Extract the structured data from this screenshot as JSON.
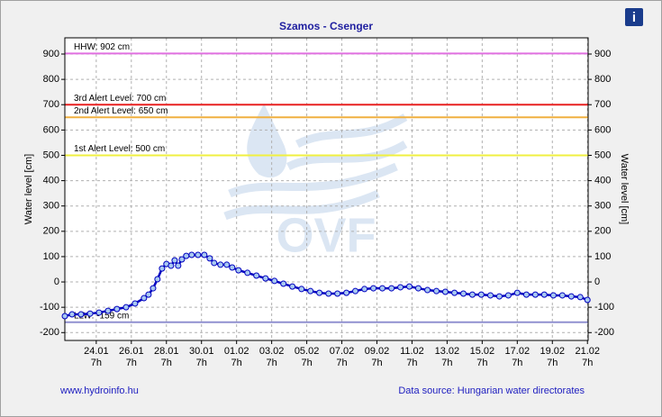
{
  "chart_data": {
    "type": "line",
    "title": "Szamos - Csenger",
    "ylabel": "Water level [cm]",
    "y2label": "Water level [cm]",
    "watermark": "OVF",
    "info_icon": "i",
    "footer_left": "www.hydroinfo.hu",
    "footer_right": "Data source: Hungarian water directorates",
    "color": "#0000c0",
    "marker_fill": "#a8c8f0",
    "grid": true,
    "xlim": [
      22.5,
      52.33
    ],
    "ylim": [
      -231,
      964
    ],
    "y2lim": [
      -231,
      964
    ],
    "yticks": [
      -200,
      -100,
      0,
      100,
      200,
      300,
      400,
      500,
      600,
      700,
      800,
      900
    ],
    "y2ticks": [
      -200,
      -100,
      0,
      100,
      200,
      300,
      400,
      500,
      600,
      700,
      800,
      900
    ],
    "xticks": [
      {
        "value": 24.29,
        "label": "24.01",
        "hour": "7h"
      },
      {
        "value": 26.29,
        "label": "26.01",
        "hour": "7h"
      },
      {
        "value": 28.29,
        "label": "28.01",
        "hour": "7h"
      },
      {
        "value": 30.29,
        "label": "30.01",
        "hour": "7h"
      },
      {
        "value": 32.29,
        "label": "01.02",
        "hour": "7h"
      },
      {
        "value": 34.29,
        "label": "03.02",
        "hour": "7h"
      },
      {
        "value": 36.29,
        "label": "05.02",
        "hour": "7h"
      },
      {
        "value": 38.29,
        "label": "07.02",
        "hour": "7h"
      },
      {
        "value": 40.29,
        "label": "09.02",
        "hour": "7h"
      },
      {
        "value": 42.29,
        "label": "11.02",
        "hour": "7h"
      },
      {
        "value": 44.29,
        "label": "13.02",
        "hour": "7h"
      },
      {
        "value": 46.29,
        "label": "15.02",
        "hour": "7h"
      },
      {
        "value": 48.29,
        "label": "17.02",
        "hour": "7h"
      },
      {
        "value": 50.29,
        "label": "19.02",
        "hour": "7h"
      },
      {
        "value": 52.29,
        "label": "21.02",
        "hour": "7h"
      }
    ],
    "reference_lines": [
      {
        "label": "HHW: 902 cm",
        "value": 902,
        "color": "#e070e0"
      },
      {
        "label": "3rd Alert Level: 700 cm",
        "value": 700,
        "color": "#e82020"
      },
      {
        "label": "2nd Alert Level: 650 cm",
        "value": 650,
        "color": "#f0b040"
      },
      {
        "label": "1st Alert Level: 500 cm",
        "value": 500,
        "color": "#f0f040"
      },
      {
        "label": "LLW: -159 cm",
        "value": -159,
        "color": "#9090d0"
      }
    ],
    "x": [
      22.5,
      22.91,
      23.42,
      23.94,
      24.45,
      24.96,
      25.47,
      25.99,
      26.5,
      27.01,
      27.27,
      27.53,
      27.78,
      28.04,
      28.29,
      28.55,
      28.76,
      28.96,
      29.17,
      29.42,
      29.73,
      30.09,
      30.45,
      30.76,
      31.01,
      31.37,
      31.73,
      32.04,
      32.4,
      32.91,
      33.42,
      33.94,
      34.45,
      34.96,
      35.47,
      35.99,
      36.5,
      37.01,
      37.53,
      38.04,
      38.55,
      39.06,
      39.58,
      40.09,
      40.6,
      41.12,
      41.63,
      42.14,
      42.65,
      43.17,
      43.68,
      44.19,
      44.71,
      45.22,
      45.73,
      46.24,
      46.76,
      47.27,
      47.78,
      48.29,
      48.81,
      49.32,
      49.83,
      50.35,
      50.86,
      51.37,
      51.88,
      52.29
    ],
    "values": [
      -135,
      -128,
      -128,
      -125,
      -121,
      -114,
      -107,
      -100,
      -85,
      -64,
      -50,
      -25,
      11,
      53,
      71,
      64,
      85,
      64,
      89,
      103,
      107,
      107,
      107,
      93,
      75,
      68,
      68,
      57,
      46,
      36,
      25,
      14,
      4,
      -7,
      -18,
      -28,
      -36,
      -43,
      -46,
      -46,
      -43,
      -36,
      -28,
      -25,
      -25,
      -25,
      -21,
      -18,
      -25,
      -32,
      -36,
      -39,
      -43,
      -46,
      -50,
      -50,
      -53,
      -57,
      -53,
      -43,
      -50,
      -50,
      -50,
      -53,
      -53,
      -57,
      -60,
      -71
    ]
  }
}
